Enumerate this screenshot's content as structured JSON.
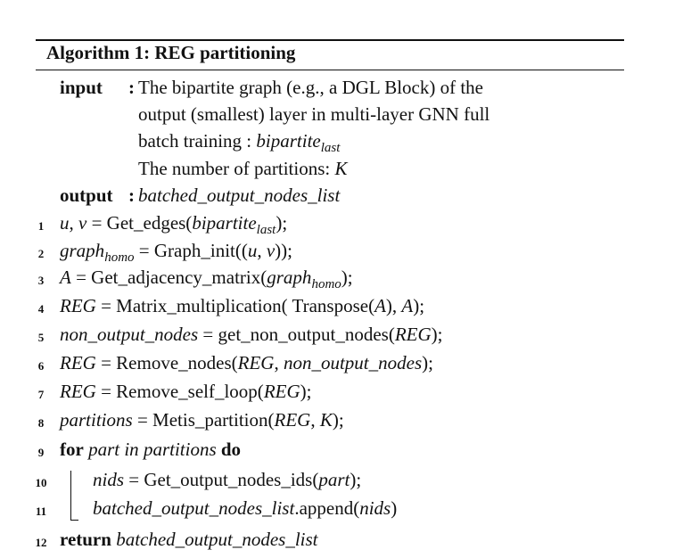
{
  "algorithm": {
    "title": "Algorithm 1: REG partitioning",
    "input_keyword": "input",
    "input_colon": ":",
    "input_lines": [
      "The bipartite graph (e.g., a DGL Block) of the",
      "output (smallest) layer in multi-layer GNN full",
      "batch training : ",
      "The number of partitions: "
    ],
    "output_keyword": "output",
    "output_colon": ":",
    "output_value": "batched_output_nodes_list",
    "line_numbers": [
      "1",
      "2",
      "3",
      "4",
      "5",
      "6",
      "7",
      "8",
      "9",
      "10",
      "11",
      "12"
    ],
    "tokens": {
      "bipartite": "bipartite",
      "last": "last",
      "K": "K",
      "u": "u",
      "v": "v",
      "graph": "graph",
      "homo": "homo",
      "A": "A",
      "REG": "REG",
      "non_output_nodes": "non_output_nodes",
      "partitions": "partitions",
      "part": "part",
      "nids": "nids",
      "batched_output_nodes_list": "batched_output_nodes_list",
      "for": "for",
      "in": "in",
      "do": "do",
      "return": "return"
    },
    "text": {
      "l1_a": ", ",
      "l1_b": " = Get_edges(",
      "l1_c": ");",
      "l2_a": " = Graph_init((",
      "l2_b": ", ",
      "l2_c": "));",
      "l3_a": " = Get_adjacency_matrix(",
      "l3_b": ");",
      "l4_a": " = Matrix_multiplication( Transpose(",
      "l4_b": "), ",
      "l4_c": ");",
      "l5_a": " = get_non_output_nodes(",
      "l5_b": ");",
      "l6_a": " = Remove_nodes(",
      "l6_b": ", ",
      "l6_c": ");",
      "l7_a": " = Remove_self_loop(",
      "l7_b": ");",
      "l8_a": " = Metis_partition(",
      "l8_b": ", ",
      "l8_c": ");",
      "l10_a": " = Get_output_nodes_ids(",
      "l10_b": ");",
      "l11_a": ".append(",
      "l11_b": ")"
    }
  }
}
